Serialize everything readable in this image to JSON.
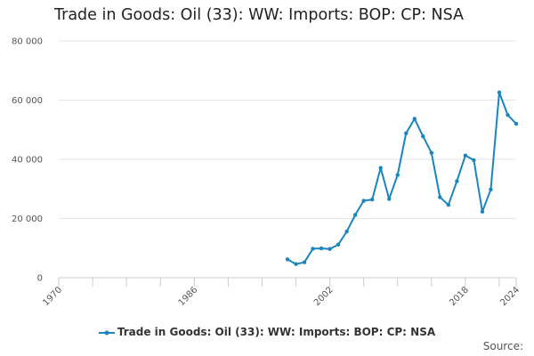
{
  "chart_data": {
    "type": "line",
    "title": "Trade in Goods: Oil (33): WW: Imports: BOP: CP: NSA",
    "xlabel": "",
    "ylabel": "",
    "xlim": [
      1970,
      2024
    ],
    "ylim": [
      0,
      80000
    ],
    "yticks": [
      0,
      20000,
      40000,
      60000,
      80000
    ],
    "ytick_labels": [
      "0",
      "20 000",
      "40 000",
      "60 000",
      "80 000"
    ],
    "xticks": [
      1970,
      1986,
      2002,
      2018,
      2024
    ],
    "xtick_labels": [
      "1970",
      "1986",
      "2002",
      "2018",
      "2024"
    ],
    "grid": "horizontal",
    "legend_position": "bottom",
    "series": [
      {
        "name": "Trade in Goods: Oil (33): WW: Imports: BOP: CP: NSA",
        "color": "#1a85bf",
        "x": [
          1997,
          1998,
          1999,
          2000,
          2001,
          2002,
          2003,
          2004,
          2005,
          2006,
          2007,
          2008,
          2009,
          2010,
          2011,
          2012,
          2013,
          2014,
          2015,
          2016,
          2017,
          2018,
          2019,
          2020,
          2021,
          2022,
          2023,
          2024
        ],
        "values": [
          6200,
          4600,
          5200,
          9800,
          9900,
          9700,
          11200,
          15600,
          21200,
          26000,
          26400,
          37100,
          26600,
          34700,
          48800,
          53700,
          47800,
          42200,
          27200,
          24600,
          32600,
          41300,
          39700,
          22300,
          29800,
          62600,
          55000,
          52000
        ]
      }
    ]
  },
  "source_label": "Source:"
}
